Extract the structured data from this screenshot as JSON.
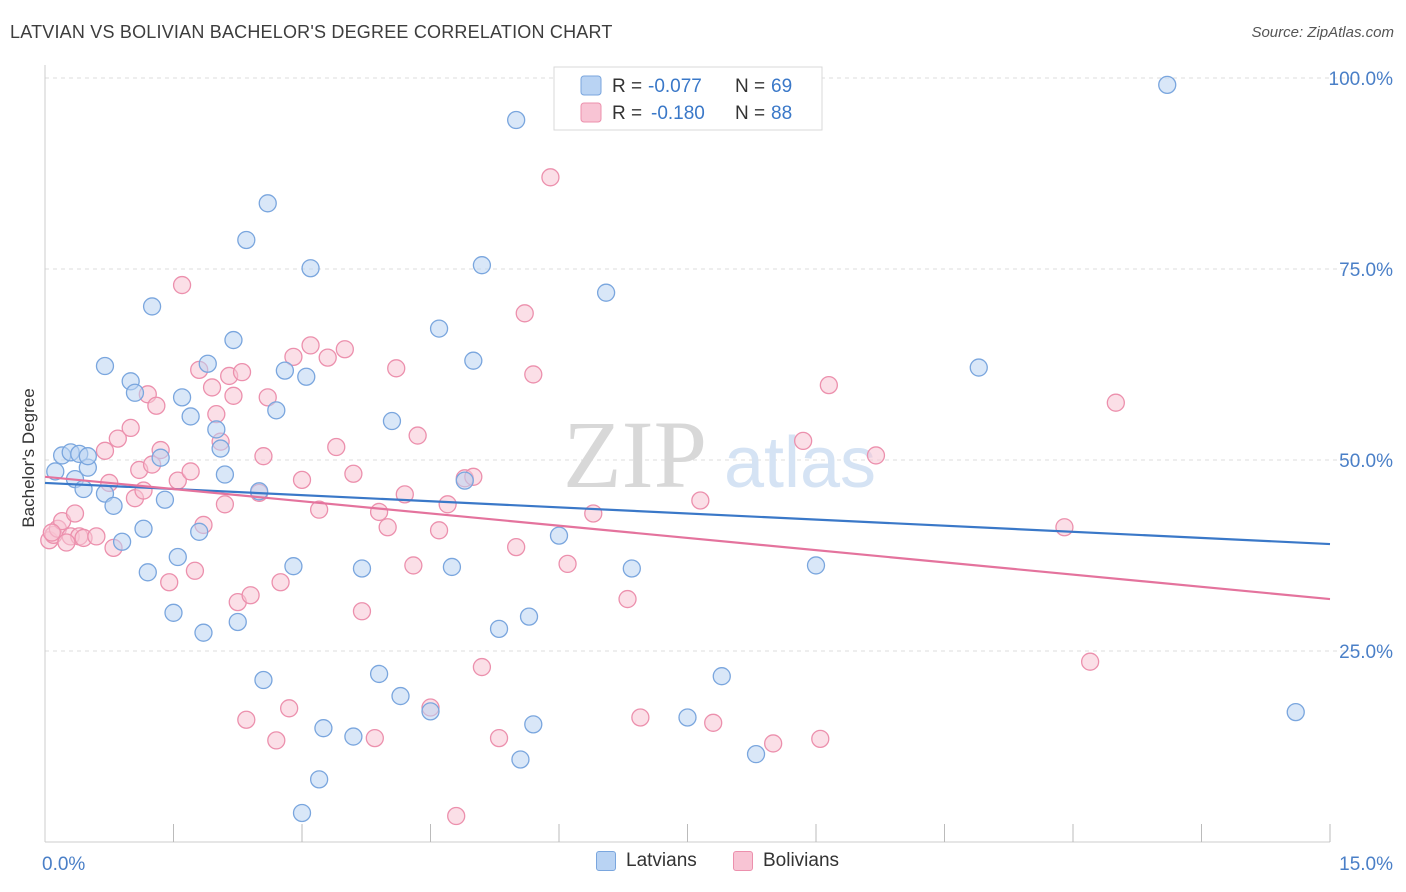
{
  "title": "LATVIAN VS BOLIVIAN BACHELOR'S DEGREE CORRELATION CHART",
  "source": "Source: ZipAtlas.com",
  "watermark": {
    "zip": "ZIP",
    "atlas": "atlas"
  },
  "colors": {
    "latvians_fill": "#b9d3f3",
    "latvians_stroke": "#7aa6de",
    "latvians_line": "#3a78c8",
    "bolivians_fill": "#f8c4d4",
    "bolivians_stroke": "#ec90ad",
    "bolivians_line": "#e4739d",
    "axis_text": "#4a7fc7",
    "grid": "#dddddd"
  },
  "stats": [
    {
      "r_label": "R =",
      "r_value": "-0.077",
      "n_label": "N =",
      "n_value": "69"
    },
    {
      "r_label": "R =",
      "r_value": "-0.180",
      "n_label": "N =",
      "n_value": "88"
    }
  ],
  "chart_data": {
    "type": "scatter",
    "xlabel": "",
    "ylabel": "Bachelor's Degree",
    "xlim": [
      0,
      15
    ],
    "ylim": [
      0,
      105
    ],
    "x_tick_labels": [
      {
        "value": 0,
        "label": "0.0%"
      },
      {
        "value": 15,
        "label": "15.0%"
      }
    ],
    "y_tick_labels": [
      {
        "value": 25,
        "label": "25.0%"
      },
      {
        "value": 50,
        "label": "50.0%"
      },
      {
        "value": 75,
        "label": "75.0%"
      },
      {
        "value": 100,
        "label": "100.0%"
      }
    ],
    "grid": "horizontal dashed",
    "legend": "bottom-center",
    "series": [
      {
        "name": "Latvians",
        "trend": [
          [
            0,
            47
          ],
          [
            15,
            39
          ]
        ],
        "points": [
          [
            0.12,
            48.5
          ],
          [
            0.2,
            50.6
          ],
          [
            0.3,
            51
          ],
          [
            0.4,
            50.8
          ],
          [
            0.35,
            47.5
          ],
          [
            0.5,
            49
          ],
          [
            0.5,
            50.5
          ],
          [
            0.45,
            46.2
          ],
          [
            0.7,
            45.6
          ],
          [
            0.8,
            44
          ],
          [
            0.9,
            39.3
          ],
          [
            0.7,
            62.3
          ],
          [
            1.0,
            60.3
          ],
          [
            1.05,
            58.8
          ],
          [
            1.15,
            41
          ],
          [
            1.2,
            35.3
          ],
          [
            1.25,
            70.1
          ],
          [
            1.35,
            50.3
          ],
          [
            1.4,
            44.8
          ],
          [
            1.5,
            30
          ],
          [
            1.55,
            37.3
          ],
          [
            1.6,
            58.2
          ],
          [
            1.7,
            55.7
          ],
          [
            1.8,
            40.6
          ],
          [
            1.85,
            27.4
          ],
          [
            1.9,
            62.6
          ],
          [
            2.0,
            54
          ],
          [
            2.05,
            51.5
          ],
          [
            2.1,
            48.1
          ],
          [
            2.2,
            65.7
          ],
          [
            2.25,
            28.8
          ],
          [
            2.35,
            78.8
          ],
          [
            2.5,
            45.9
          ],
          [
            2.55,
            21.2
          ],
          [
            2.6,
            83.6
          ],
          [
            2.7,
            56.5
          ],
          [
            2.8,
            61.7
          ],
          [
            2.9,
            36.1
          ],
          [
            3.0,
            3.8
          ],
          [
            3.05,
            60.9
          ],
          [
            3.1,
            75.1
          ],
          [
            3.2,
            8.2
          ],
          [
            3.25,
            14.9
          ],
          [
            3.6,
            13.8
          ],
          [
            3.7,
            35.8
          ],
          [
            3.9,
            22
          ],
          [
            4.05,
            55.1
          ],
          [
            4.15,
            19.1
          ],
          [
            4.5,
            17.1
          ],
          [
            4.6,
            67.2
          ],
          [
            4.75,
            36
          ],
          [
            4.9,
            47.3
          ],
          [
            5.0,
            63
          ],
          [
            5.1,
            75.5
          ],
          [
            5.3,
            27.9
          ],
          [
            5.5,
            94.5
          ],
          [
            5.55,
            10.8
          ],
          [
            5.65,
            29.5
          ],
          [
            5.7,
            15.4
          ],
          [
            6.0,
            40.1
          ],
          [
            6.55,
            71.9
          ],
          [
            6.85,
            35.8
          ],
          [
            7.5,
            16.3
          ],
          [
            7.9,
            21.7
          ],
          [
            8.3,
            11.5
          ],
          [
            9.0,
            36.2
          ],
          [
            10.9,
            62.1
          ],
          [
            13.1,
            99.1
          ],
          [
            14.6,
            17
          ]
        ]
      },
      {
        "name": "Bolivians",
        "trend": [
          [
            0,
            47.8
          ],
          [
            15,
            31.8
          ]
        ],
        "points": [
          [
            0.05,
            39.5
          ],
          [
            0.1,
            40.2
          ],
          [
            0.15,
            41
          ],
          [
            0.2,
            42
          ],
          [
            0.3,
            40
          ],
          [
            0.35,
            43
          ],
          [
            0.4,
            40
          ],
          [
            0.45,
            39.8
          ],
          [
            0.6,
            40
          ],
          [
            0.7,
            51.2
          ],
          [
            0.75,
            47
          ],
          [
            0.8,
            38.5
          ],
          [
            0.85,
            52.8
          ],
          [
            1.0,
            54.2
          ],
          [
            1.05,
            45
          ],
          [
            1.1,
            48.7
          ],
          [
            1.15,
            46
          ],
          [
            1.2,
            58.6
          ],
          [
            1.25,
            49.4
          ],
          [
            1.3,
            57.1
          ],
          [
            1.35,
            51.3
          ],
          [
            1.45,
            34
          ],
          [
            1.55,
            47.3
          ],
          [
            1.6,
            72.9
          ],
          [
            1.7,
            48.5
          ],
          [
            1.75,
            35.5
          ],
          [
            1.8,
            61.8
          ],
          [
            1.85,
            41.5
          ],
          [
            1.95,
            59.5
          ],
          [
            2.0,
            56
          ],
          [
            2.05,
            52.4
          ],
          [
            2.1,
            44.2
          ],
          [
            2.15,
            61
          ],
          [
            2.2,
            58.4
          ],
          [
            2.25,
            31.4
          ],
          [
            2.3,
            61.5
          ],
          [
            2.35,
            16
          ],
          [
            2.4,
            32.3
          ],
          [
            2.5,
            45.7
          ],
          [
            2.55,
            50.5
          ],
          [
            2.6,
            58.2
          ],
          [
            2.7,
            13.3
          ],
          [
            2.75,
            34
          ],
          [
            2.85,
            17.5
          ],
          [
            2.9,
            63.5
          ],
          [
            3.0,
            47.4
          ],
          [
            3.1,
            65
          ],
          [
            3.2,
            43.5
          ],
          [
            3.3,
            63.4
          ],
          [
            3.4,
            51.7
          ],
          [
            3.5,
            64.5
          ],
          [
            3.6,
            48.2
          ],
          [
            3.7,
            30.2
          ],
          [
            3.85,
            13.6
          ],
          [
            3.9,
            43.2
          ],
          [
            4.0,
            41.2
          ],
          [
            4.1,
            62
          ],
          [
            4.2,
            45.5
          ],
          [
            4.3,
            36.2
          ],
          [
            4.35,
            53.2
          ],
          [
            4.5,
            17.6
          ],
          [
            4.6,
            40.8
          ],
          [
            4.7,
            44.2
          ],
          [
            4.8,
            3.4
          ],
          [
            4.9,
            47.6
          ],
          [
            5.0,
            47.8
          ],
          [
            5.1,
            22.9
          ],
          [
            5.3,
            13.6
          ],
          [
            5.5,
            38.6
          ],
          [
            5.6,
            69.2
          ],
          [
            5.7,
            61.2
          ],
          [
            5.9,
            87
          ],
          [
            6.1,
            36.4
          ],
          [
            6.4,
            43
          ],
          [
            6.8,
            31.8
          ],
          [
            6.95,
            16.3
          ],
          [
            7.65,
            44.7
          ],
          [
            7.8,
            15.6
          ],
          [
            8.5,
            12.9
          ],
          [
            8.85,
            52.5
          ],
          [
            9.05,
            13.5
          ],
          [
            9.15,
            59.8
          ],
          [
            9.7,
            50.6
          ],
          [
            11.9,
            41.2
          ],
          [
            12.2,
            23.6
          ],
          [
            12.5,
            57.5
          ],
          [
            0.08,
            40.5
          ],
          [
            0.25,
            39.2
          ]
        ]
      }
    ]
  }
}
